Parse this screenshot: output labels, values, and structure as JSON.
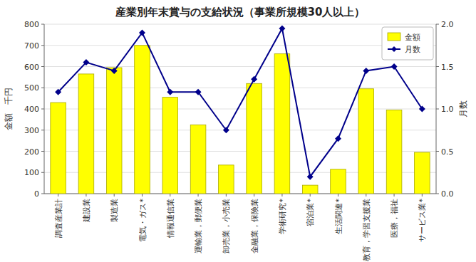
{
  "chart_data": {
    "type": "bar",
    "title": "産業別年末賞与の支給状況（事業所規模30人以上）",
    "categories": [
      "調査産業計",
      "建設業",
      "製造業",
      "電気・ガス*",
      "情報通信業",
      "運輸業，郵便業",
      "卸売業，小売業",
      "金融業，保険業",
      "学術研究*",
      "宿泊業*",
      "生活関連*",
      "教育，学習支援業",
      "医療，福祉",
      "サービス業*"
    ],
    "series": [
      {
        "name": "金額",
        "type": "bar",
        "color": "#ffff00",
        "values": [
          430,
          565,
          595,
          700,
          455,
          325,
          135,
          520,
          660,
          40,
          115,
          495,
          395,
          195
        ]
      },
      {
        "name": "月数",
        "type": "line",
        "axis": "y2",
        "color": "#00008B",
        "marker": "diamond",
        "values": [
          1.2,
          1.55,
          1.45,
          1.9,
          1.2,
          1.2,
          0.75,
          1.35,
          1.95,
          0.2,
          0.65,
          1.45,
          1.5,
          1.0
        ]
      }
    ],
    "ylabel": "金額　千円",
    "y2label": "月数",
    "ylim": [
      0,
      800
    ],
    "yticks": [
      0,
      100,
      200,
      300,
      400,
      500,
      600,
      700,
      800
    ],
    "y2lim": [
      0.0,
      2.0
    ],
    "y2ticks": [
      {
        "value": 0.0,
        "label": "0.0"
      },
      0.5,
      {
        "value": 1.0,
        "label": "1.0"
      },
      1.5,
      {
        "value": 2.0,
        "label": "2.0"
      }
    ],
    "grid": true,
    "legend": "upper right"
  }
}
